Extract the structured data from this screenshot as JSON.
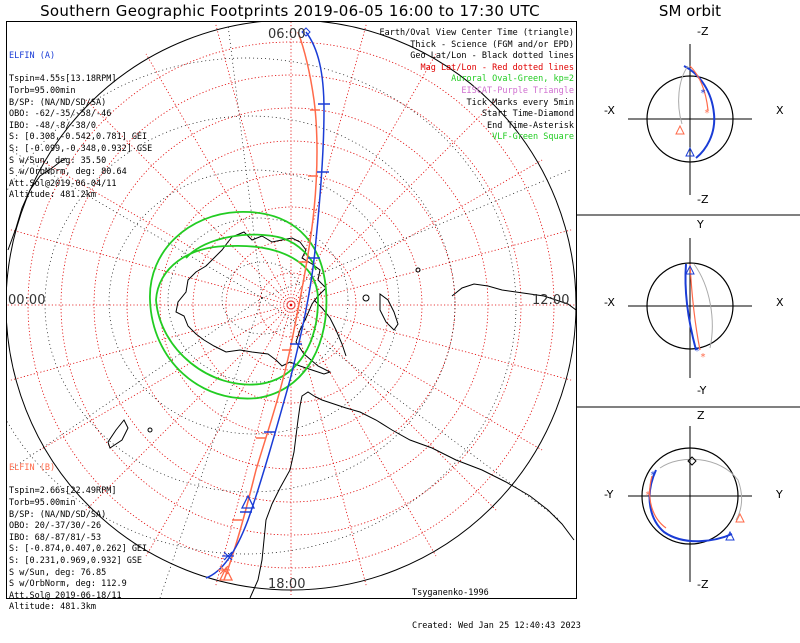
{
  "title": "Southern Geographic Footprints 2019-06-05 16:00 to 17:30 UTC",
  "sm_title": "SM orbit",
  "time_labels": {
    "top": "06:00",
    "bottom": "18:00",
    "left": "00:00",
    "right": "12:00"
  },
  "elfin_a": {
    "header": "ELFIN (A)",
    "color": "#1a3cd6",
    "lines": [
      "Tspin=4.55s[13.18RPM]",
      "Torb=95.00min",
      "B/SP: (NA/ND/SD/SA)",
      "OBO: -62/-35/-58/-46",
      "IBO: -48/-8/-38/0",
      "S: [0.308,-0.542,0.781] GEI",
      "S: [-0.099,-0.348,0.932] GSE",
      "S w/Sun, deg: 35.50",
      "S w/OrbNorm, deg: 80.64",
      "Att.Sol@2019-06-04/11",
      "Altitude: 481.2km"
    ]
  },
  "elfin_b": {
    "header": "ELFIN (B)",
    "color": "#ff6a4a",
    "lines": [
      "Tspin=2.66s[22.49RPM]",
      "Torb=95.00min",
      "B/SP: (NA/ND/SD/SA)",
      "OBO: 20/-37/30/-26",
      "IBO: 68/-87/81/-53",
      "S: [-0.874,0.407,0.262] GEI",
      "S: [0.231,0.969,0.932] GSE",
      "S w/Sun, deg: 76.85",
      "S w/OrbNorm, deg: 112.9",
      "Att.Sol@ 2019-06-18/11",
      "Altitude: 481.3km"
    ]
  },
  "legend": [
    {
      "text": "Earth/Oval View Center Time (triangle)",
      "color": "#000000"
    },
    {
      "text": "Thick - Science (FGM and/or EPD)",
      "color": "#000000"
    },
    {
      "text": "Geo Lat/Lon - Black dotted lines",
      "color": "#000000"
    },
    {
      "text": "Mag Lat/Lon - Red dotted lines",
      "color": "#e00000"
    },
    {
      "text": "Auroral Oval-Green, kp=2",
      "color": "#22cc22"
    },
    {
      "text": "EISCAT-Purple Triangle",
      "color": "#d070d0"
    },
    {
      "text": "Tick Marks every 5min",
      "color": "#000000"
    },
    {
      "text": "Start Time-Diamond",
      "color": "#000000"
    },
    {
      "text": "End Time-Asterisk",
      "color": "#000000"
    },
    {
      "text": "VLF-Green Square",
      "color": "#22cc22"
    }
  ],
  "credits": {
    "model": "Tsyganenko-1996",
    "created": "Created: Wed Jan 25 12:40:43 2023"
  },
  "sm_panels": [
    {
      "top": "-Z",
      "bottom": "-Z",
      "left": "-X",
      "right": "X"
    },
    {
      "top": "Y",
      "bottom": "-Y",
      "left": "-X",
      "right": "X"
    },
    {
      "top": "Z",
      "bottom": "-Z",
      "left": "-Y",
      "right": "Y"
    }
  ],
  "colors": {
    "mag_grid": "#e00000",
    "geo_grid": "#000000",
    "oval": "#22cc22",
    "elfin_a": "#1a3cd6",
    "elfin_b": "#ff6a4a"
  }
}
